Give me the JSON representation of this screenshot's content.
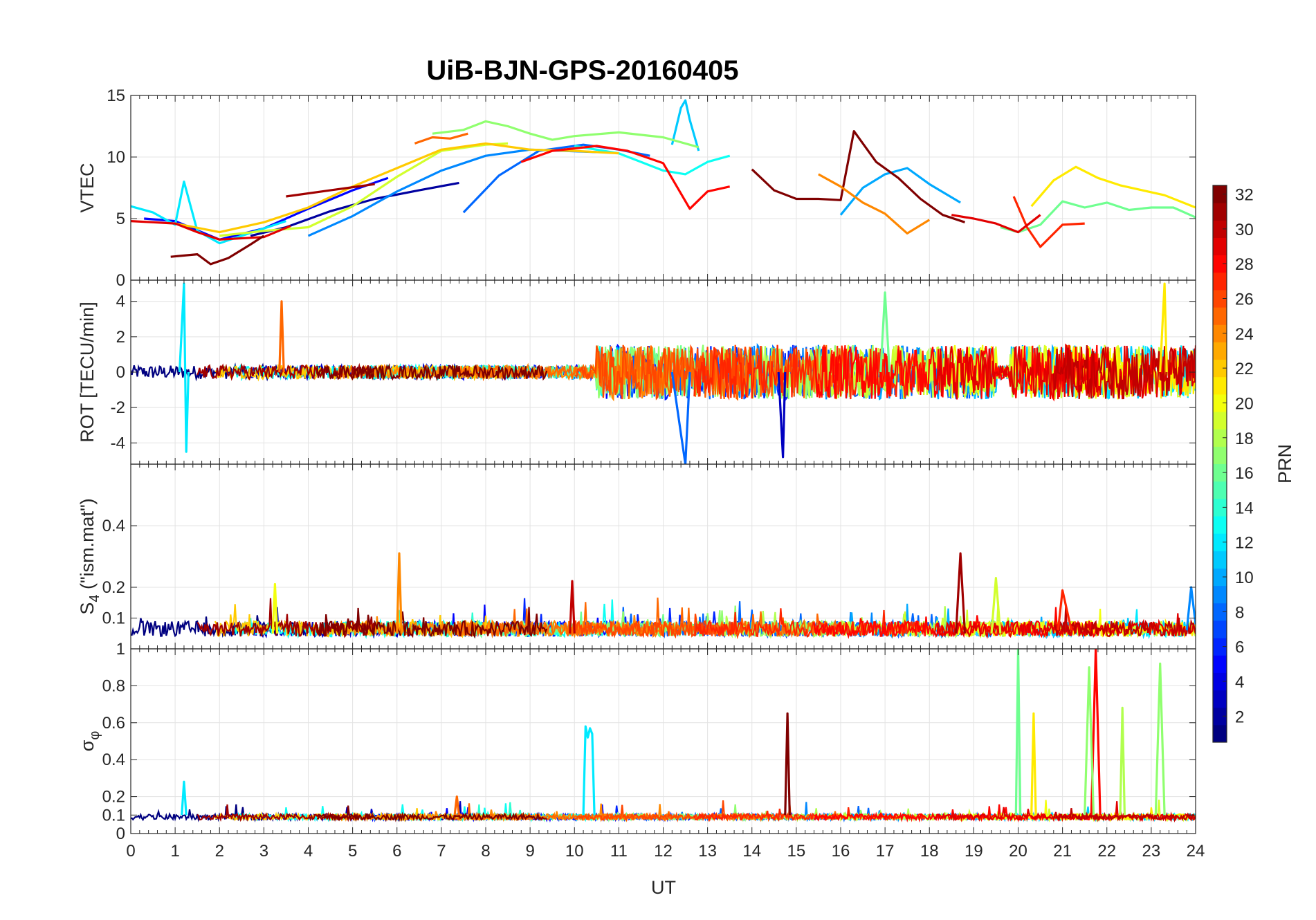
{
  "chart_data": {
    "title": "UiB-BJN-GPS-20160405",
    "type": "line",
    "xlabel": "UT",
    "x_ticks": [
      0,
      1,
      2,
      3,
      4,
      5,
      6,
      7,
      8,
      9,
      10,
      11,
      12,
      13,
      14,
      15,
      16,
      17,
      18,
      19,
      20,
      21,
      22,
      23,
      24
    ],
    "xlim": [
      0,
      24
    ],
    "grid": true,
    "panels": [
      {
        "name": "vtec",
        "ylabel": "VTEC",
        "ylim": [
          0,
          15
        ],
        "y_ticks": [
          0,
          5,
          10,
          15
        ],
        "series": [
          {
            "prn": 2,
            "x": [
              2.7,
              3.5,
              4.5,
              5.5,
              6.5,
              7.4
            ],
            "y": [
              3.6,
              4.3,
              5.6,
              6.6,
              7.3,
              7.9
            ]
          },
          {
            "prn": 5,
            "x": [
              0.3,
              1,
              2,
              3,
              4,
              5,
              5.8
            ],
            "y": [
              5,
              4.8,
              3.3,
              4.2,
              5.8,
              7.3,
              8.3
            ]
          },
          {
            "prn": 8,
            "x": [
              7.5,
              8.3,
              9.2,
              10.2,
              11,
              11.7
            ],
            "y": [
              5.5,
              8.5,
              10.5,
              11,
              10.6,
              10.1
            ]
          },
          {
            "prn": 9,
            "x": [
              4,
              5,
              6,
              7,
              8,
              9,
              10.5
            ],
            "y": [
              3.6,
              5.2,
              7.2,
              8.9,
              10.1,
              10.6,
              10.4
            ]
          },
          {
            "prn": 10,
            "x": [
              16,
              16.5,
              17,
              17.5,
              18,
              18.7
            ],
            "y": [
              5.3,
              7.5,
              8.6,
              9.1,
              7.8,
              6.3
            ]
          },
          {
            "prn": 11,
            "x": [
              12.2,
              12.4,
              12.5,
              12.6,
              12.8
            ],
            "y": [
              11,
              14,
              14.6,
              13,
              10.5
            ]
          },
          {
            "prn": 12,
            "x": [
              0,
              0.5,
              1,
              1.2,
              1.5,
              2,
              3,
              3.5
            ],
            "y": [
              6,
              5.5,
              4.5,
              8,
              4,
              3,
              4.2,
              4.8
            ]
          },
          {
            "prn": 13,
            "x": [
              10,
              11,
              11.5,
              12,
              12.5,
              13,
              13.5
            ],
            "y": [
              10.9,
              10.3,
              9.6,
              8.9,
              8.6,
              9.6,
              10.1
            ]
          },
          {
            "prn": 17,
            "x": [
              6.8,
              7.5,
              8,
              8.5,
              9,
              9.5,
              10,
              11,
              12,
              12.8
            ],
            "y": [
              11.9,
              12.2,
              12.9,
              12.5,
              11.9,
              11.4,
              11.7,
              12,
              11.6,
              10.8
            ]
          },
          {
            "prn": 19,
            "x": [
              2,
              3,
              4,
              5,
              6,
              7,
              8,
              8.5
            ],
            "y": [
              3.6,
              4,
              4.3,
              6,
              8.4,
              10.5,
              11,
              11.1
            ]
          },
          {
            "prn": 22,
            "x": [
              1,
              2,
              3,
              4,
              5,
              6,
              7,
              8,
              9,
              10,
              11
            ],
            "y": [
              4.6,
              3.9,
              4.7,
              5.9,
              7.6,
              9.1,
              10.6,
              11.1,
              10.6,
              10.5,
              10.3
            ]
          },
          {
            "prn": 25,
            "x": [
              6.4,
              6.8,
              7.2,
              7.6
            ],
            "y": [
              11.1,
              11.6,
              11.5,
              11.9
            ]
          },
          {
            "prn": 28,
            "x": [
              8.8,
              9.5,
              10.5,
              11.2,
              12,
              12.6,
              13,
              13.5
            ],
            "y": [
              9.6,
              10.5,
              10.9,
              10.5,
              9.5,
              5.8,
              7.2,
              7.6
            ]
          },
          {
            "prn": 29,
            "x": [
              0,
              0.5,
              1,
              1.5,
              2,
              3,
              3.6
            ],
            "y": [
              4.8,
              4.7,
              4.6,
              3.9,
              3.3,
              3.5,
              4.4
            ]
          },
          {
            "prn": 31,
            "x": [
              3.5,
              4.5,
              5.5
            ],
            "y": [
              6.8,
              7.3,
              7.8
            ]
          },
          {
            "prn": 32,
            "x": [
              0.9,
              1.5,
              1.8,
              2.2,
              2.7,
              3
            ],
            "y": [
              1.9,
              2.1,
              1.3,
              1.8,
              2.9,
              3.6
            ]
          },
          {
            "prn": 32,
            "x": [
              14,
              14.5,
              15,
              15.5,
              16,
              16.3,
              16.8,
              17.3,
              17.8,
              18.3,
              18.8
            ],
            "y": [
              9,
              7.3,
              6.6,
              6.6,
              6.5,
              12.1,
              9.6,
              8.3,
              6.6,
              5.3,
              4.7
            ]
          },
          {
            "prn": 16,
            "x": [
              19.6,
              20,
              20.5,
              21,
              21.5,
              22,
              22.5,
              23,
              23.5,
              24
            ],
            "y": [
              4.3,
              3.9,
              4.5,
              6.4,
              5.9,
              6.3,
              5.7,
              5.9,
              5.9,
              5.1
            ]
          },
          {
            "prn": 21,
            "x": [
              20.3,
              20.8,
              21.3,
              21.8,
              22.3,
              22.8,
              23.3,
              24
            ],
            "y": [
              6,
              8.1,
              9.2,
              8.3,
              7.7,
              7.3,
              6.9,
              5.9
            ]
          },
          {
            "prn": 27,
            "x": [
              19.9,
              20.2,
              20.5,
              21,
              21.5
            ],
            "y": [
              6.8,
              4.3,
              2.7,
              4.5,
              4.6
            ]
          },
          {
            "prn": 24,
            "x": [
              15.5,
              16,
              16.5,
              17,
              17.5,
              18
            ],
            "y": [
              8.6,
              7.6,
              6.3,
              5.4,
              3.8,
              4.9
            ]
          },
          {
            "prn": 29,
            "x": [
              18.5,
              19,
              19.5,
              20,
              20.5
            ],
            "y": [
              5.3,
              5,
              4.6,
              3.9,
              5.3
            ]
          }
        ]
      },
      {
        "name": "rot",
        "ylabel": "ROT [TECU/min]",
        "ylim": [
          -5.2,
          5.2
        ],
        "y_ticks": [
          -4,
          -2,
          0,
          2,
          4
        ],
        "series": [
          {
            "prn": 12,
            "x": [
              1.1,
              1.2,
              1.25,
              1.3
            ],
            "y": [
              0,
              5,
              -4.5,
              0
            ]
          },
          {
            "prn": 25,
            "x": [
              3.35,
              3.4,
              3.45
            ],
            "y": [
              0,
              4,
              0
            ]
          },
          {
            "prn": 8,
            "x": [
              12.2,
              12.4,
              12.5,
              12.6
            ],
            "y": [
              0,
              -3.5,
              -5.2,
              0
            ]
          },
          {
            "prn": 3,
            "x": [
              14.6,
              14.7,
              14.75
            ],
            "y": [
              0,
              -4.8,
              0
            ]
          },
          {
            "prn": 21,
            "x": [
              23.2,
              23.3,
              23.35
            ],
            "y": [
              0,
              5,
              0
            ]
          },
          {
            "prn": 16,
            "x": [
              16.9,
              17,
              17.1
            ],
            "y": [
              0,
              4.5,
              0
            ]
          }
        ]
      },
      {
        "name": "s4",
        "ylabel": "S4 (\"ism.mat\")",
        "ylabel_main": "S",
        "ylabel_sub": "4",
        "ylabel_rest": " (\"ism.mat\")",
        "ylim": [
          0,
          0.6
        ],
        "y_ticks": [
          0.1,
          0.2,
          0.4
        ],
        "series": [
          {
            "prn": 24,
            "x": [
              6.0,
              6.05,
              6.1
            ],
            "y": [
              0.05,
              0.31,
              0.05
            ]
          },
          {
            "prn": 31,
            "x": [
              18.6,
              18.7,
              18.8
            ],
            "y": [
              0.05,
              0.31,
              0.05
            ]
          },
          {
            "prn": 30,
            "x": [
              9.9,
              9.95,
              10.0
            ],
            "y": [
              0.05,
              0.22,
              0.05
            ]
          },
          {
            "prn": 20,
            "x": [
              3.2,
              3.25,
              3.3
            ],
            "y": [
              0.05,
              0.21,
              0.05
            ]
          },
          {
            "prn": 19,
            "x": [
              19.4,
              19.5,
              19.6
            ],
            "y": [
              0.05,
              0.23,
              0.05
            ]
          },
          {
            "prn": 27,
            "x": [
              20.9,
              21.0,
              21.2
            ],
            "y": [
              0.06,
              0.19,
              0.06
            ]
          },
          {
            "prn": 9,
            "x": [
              23.8,
              23.9,
              24
            ],
            "y": [
              0.06,
              0.2,
              0.08
            ]
          }
        ]
      },
      {
        "name": "sigma_phi",
        "ylabel": "σ φ",
        "ylabel_main": "σ",
        "ylabel_sub": "φ",
        "ylim": [
          0,
          1
        ],
        "y_ticks": [
          0,
          0.1,
          0.2,
          0.4,
          0.6,
          0.8,
          1
        ],
        "series": [
          {
            "prn": 12,
            "x": [
              10.2,
              10.25,
              10.3,
              10.35,
              10.4,
              10.45
            ],
            "y": [
              0.1,
              0.58,
              0.52,
              0.57,
              0.54,
              0.1
            ]
          },
          {
            "prn": 32,
            "x": [
              14.75,
              14.8,
              14.85
            ],
            "y": [
              0.1,
              0.65,
              0.1
            ]
          },
          {
            "prn": 16,
            "x": [
              19.95,
              20.0,
              20.05
            ],
            "y": [
              0.1,
              1.0,
              0.1
            ]
          },
          {
            "prn": 21,
            "x": [
              20.3,
              20.35,
              20.4
            ],
            "y": [
              0.1,
              0.65,
              0.1
            ]
          },
          {
            "prn": 28,
            "x": [
              21.65,
              21.75,
              21.85
            ],
            "y": [
              0.1,
              1.0,
              0.1
            ]
          },
          {
            "prn": 17,
            "x": [
              21.5,
              21.6,
              21.7
            ],
            "y": [
              0.1,
              0.9,
              0.1
            ]
          },
          {
            "prn": 18,
            "x": [
              22.3,
              22.35,
              22.4
            ],
            "y": [
              0.1,
              0.68,
              0.1
            ]
          },
          {
            "prn": 17,
            "x": [
              23.1,
              23.2,
              23.3
            ],
            "y": [
              0.1,
              0.92,
              0.1
            ]
          },
          {
            "prn": 12,
            "x": [
              1.15,
              1.2,
              1.25
            ],
            "y": [
              0.1,
              0.28,
              0.1
            ]
          },
          {
            "prn": 25,
            "x": [
              7.3,
              7.35,
              7.4
            ],
            "y": [
              0.1,
              0.2,
              0.1
            ]
          }
        ]
      }
    ],
    "colorbar": {
      "label": "PRN",
      "range": [
        1,
        32
      ],
      "ticks": [
        2,
        4,
        6,
        8,
        10,
        12,
        14,
        16,
        18,
        20,
        22,
        24,
        26,
        28,
        30,
        32
      ],
      "colormap": "jet",
      "levels": 32
    }
  },
  "colors": {
    "grid": "#e3e3e3",
    "axes": "#262626",
    "background": "#ffffff"
  }
}
